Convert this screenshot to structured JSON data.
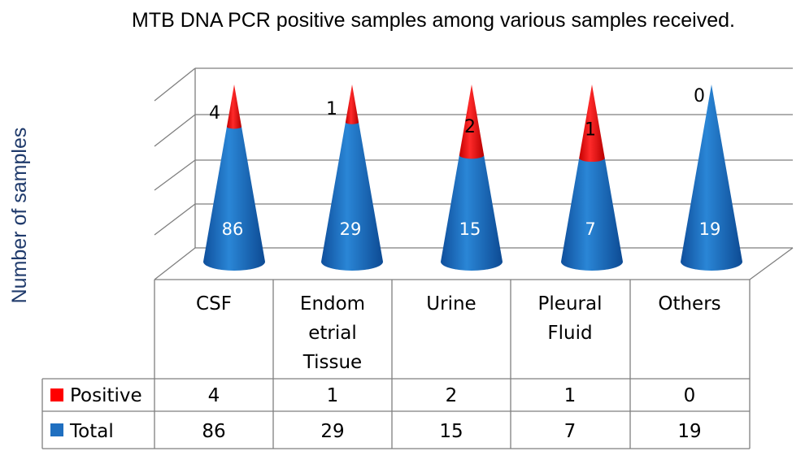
{
  "chart_data": {
    "type": "bar",
    "title": "MTB DNA PCR positive samples among various samples received.",
    "ylabel": "Number of samples",
    "categories": [
      "CSF",
      "Endometrial Tissue",
      "Urine",
      "Pleural Fluid",
      "Others"
    ],
    "category_display": [
      [
        "CSF"
      ],
      [
        "Endom",
        "etrial",
        "Tissue"
      ],
      [
        "Urine"
      ],
      [
        "Pleural",
        "Fluid"
      ],
      [
        "Others"
      ]
    ],
    "series": [
      {
        "name": "Positive",
        "values": [
          4,
          1,
          2,
          1,
          0
        ],
        "color": "#ff0000"
      },
      {
        "name": "Total",
        "values": [
          86,
          29,
          15,
          7,
          19
        ],
        "color": "#1f6fc0"
      }
    ],
    "shape": "cone",
    "grid": true,
    "legend": "data-table"
  }
}
